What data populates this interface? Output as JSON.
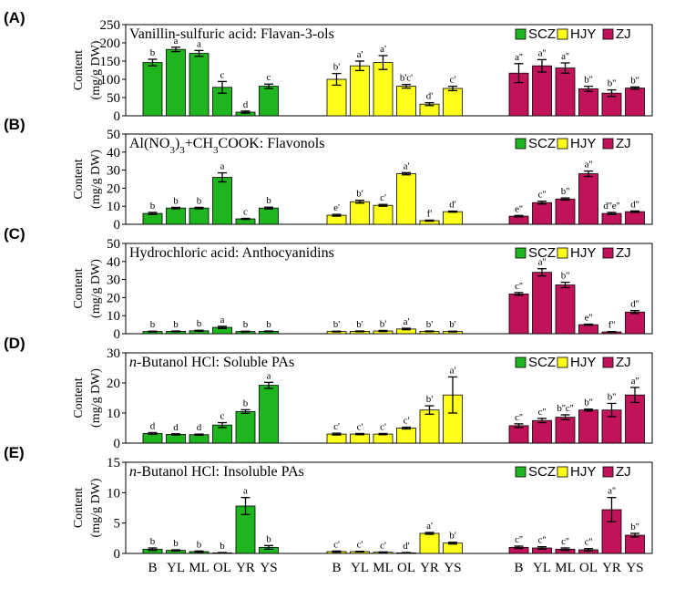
{
  "colors": {
    "SCZ": "#1fb51f",
    "HJY": "#ffff1a",
    "ZJ": "#c0135a"
  },
  "legend": [
    "SCZ",
    "HJY",
    "ZJ"
  ],
  "y_axis_label": [
    "Content",
    "(mg/g DW)"
  ],
  "x_tick_labels": [
    "B",
    "YL",
    "ML",
    "OL",
    "YR",
    "YS"
  ],
  "chart_data": [
    {
      "type": "bar",
      "panel_label": "(A)",
      "title": "Vanillin-sulfuric acid: Flavan-3-ols",
      "title_parts": [
        {
          "t": "Vanillin-sulfuric acid: Flavan-3-ols"
        }
      ],
      "ylim": [
        0,
        250
      ],
      "yticks": [
        0,
        50,
        100,
        150,
        200,
        250
      ],
      "categories": [
        "B",
        "YL",
        "ML",
        "OL",
        "YR",
        "YS"
      ],
      "series": [
        {
          "name": "SCZ",
          "values": [
            146,
            182,
            171,
            78,
            10,
            81
          ],
          "errors": [
            9,
            6,
            8,
            16,
            3,
            6
          ],
          "letters": [
            "b",
            "a",
            "a",
            "c",
            "d",
            "c"
          ]
        },
        {
          "name": "HJY",
          "values": [
            100,
            137,
            146,
            81,
            32,
            75
          ],
          "errors": [
            16,
            13,
            19,
            5,
            4,
            6
          ],
          "letters": [
            "b'",
            "a'",
            "a'",
            "b'c'",
            "d'",
            "c'"
          ]
        },
        {
          "name": "ZJ",
          "values": [
            117,
            137,
            131,
            74,
            62,
            76
          ],
          "errors": [
            26,
            17,
            14,
            7,
            9,
            3
          ],
          "letters": [
            "a''",
            "a''",
            "a''",
            "b''",
            "b''",
            "b''"
          ]
        }
      ]
    },
    {
      "type": "bar",
      "panel_label": "(B)",
      "title": "Al(NO3)3+CH3COOK: Flavonols",
      "title_parts": [
        {
          "t": "Al(NO"
        },
        {
          "t": "3",
          "sub": true
        },
        {
          "t": ")"
        },
        {
          "t": "3",
          "sub": true
        },
        {
          "t": "+CH"
        },
        {
          "t": "3",
          "sub": true
        },
        {
          "t": "COOK: Flavonols"
        }
      ],
      "ylim": [
        0,
        50
      ],
      "yticks": [
        0,
        10,
        20,
        30,
        40,
        50
      ],
      "categories": [
        "B",
        "YL",
        "ML",
        "OL",
        "YR",
        "YS"
      ],
      "series": [
        {
          "name": "SCZ",
          "values": [
            6,
            9,
            9,
            26,
            3,
            9
          ],
          "errors": [
            0.6,
            0.4,
            0.4,
            2.5,
            0.3,
            0.5
          ],
          "letters": [
            "b",
            "b",
            "b",
            "a",
            "c",
            "b"
          ]
        },
        {
          "name": "HJY",
          "values": [
            5,
            12.5,
            10.5,
            28,
            2,
            7
          ],
          "errors": [
            0.5,
            0.8,
            0.5,
            0.6,
            0.3,
            0.3
          ],
          "letters": [
            "e'",
            "b'",
            "c'",
            "a'",
            "f'",
            "d'"
          ]
        },
        {
          "name": "ZJ",
          "values": [
            4.5,
            12,
            14,
            28,
            6,
            7
          ],
          "errors": [
            0.4,
            0.8,
            0.6,
            1.5,
            0.6,
            0.4
          ],
          "letters": [
            "e''",
            "c''",
            "b''",
            "a''",
            "d''e''",
            "d''"
          ]
        }
      ]
    },
    {
      "type": "bar",
      "panel_label": "(C)",
      "title": "Hydrochloric acid: Anthocyanidins",
      "title_parts": [
        {
          "t": "Hydrochloric acid: Anthocyanidins"
        }
      ],
      "ylim": [
        0,
        50
      ],
      "yticks": [
        0,
        10,
        20,
        30,
        40,
        50
      ],
      "categories": [
        "B",
        "YL",
        "ML",
        "OL",
        "YR",
        "YS"
      ],
      "series": [
        {
          "name": "SCZ",
          "values": [
            1.2,
            1.3,
            1.6,
            3.5,
            1.2,
            1.3
          ],
          "errors": [
            0.2,
            0.2,
            0.3,
            0.6,
            0.2,
            0.2
          ],
          "letters": [
            "b",
            "b",
            "b",
            "a",
            "b",
            "b"
          ]
        },
        {
          "name": "HJY",
          "values": [
            1.2,
            1.3,
            1.5,
            2.6,
            1.3,
            1.2
          ],
          "errors": [
            0.2,
            0.2,
            0.3,
            0.4,
            0.2,
            0.2
          ],
          "letters": [
            "b'",
            "b'",
            "b'",
            "a'",
            "b'",
            "b'"
          ]
        },
        {
          "name": "ZJ",
          "values": [
            22,
            34,
            27,
            5,
            1,
            12
          ],
          "errors": [
            0.8,
            2,
            1.5,
            0.3,
            0.2,
            0.8
          ],
          "letters": [
            "c''",
            "a''",
            "b''",
            "e''",
            "f''",
            "d''"
          ]
        }
      ]
    },
    {
      "type": "bar",
      "panel_label": "(D)",
      "title": "n-Butanol HCl: Soluble PAs",
      "title_parts": [
        {
          "t": "n",
          "italic": true
        },
        {
          "t": "-Butanol HCl: Soluble PAs"
        }
      ],
      "ylim": [
        0,
        30
      ],
      "yticks": [
        0,
        10,
        20,
        30
      ],
      "categories": [
        "B",
        "YL",
        "ML",
        "OL",
        "YR",
        "YS"
      ],
      "series": [
        {
          "name": "SCZ",
          "values": [
            3.2,
            2.9,
            2.8,
            6,
            10.5,
            19.2
          ],
          "errors": [
            0.3,
            0.2,
            0.2,
            0.8,
            0.6,
            1
          ],
          "letters": [
            "d",
            "d",
            "d",
            "c",
            "b",
            "a"
          ]
        },
        {
          "name": "HJY",
          "values": [
            3,
            3,
            3,
            5,
            11,
            16
          ],
          "errors": [
            0.3,
            0.2,
            0.2,
            0.3,
            1.4,
            6
          ],
          "letters": [
            "c'",
            "c'",
            "c'",
            "c'",
            "b'",
            "a'"
          ]
        },
        {
          "name": "ZJ",
          "values": [
            5.8,
            7.5,
            8.6,
            11,
            11,
            16
          ],
          "errors": [
            0.6,
            0.7,
            0.8,
            0.3,
            2.2,
            2.5
          ],
          "letters": [
            "c''",
            "c''",
            "b''c''",
            "b''",
            "b''",
            "a''"
          ]
        }
      ]
    },
    {
      "type": "bar",
      "panel_label": "(E)",
      "title": "n-Butanol HCl: Insoluble PAs",
      "title_parts": [
        {
          "t": "n",
          "italic": true
        },
        {
          "t": "-Butanol HCl: Insoluble PAs"
        }
      ],
      "ylim": [
        0,
        15
      ],
      "yticks": [
        0,
        5,
        10,
        15
      ],
      "categories": [
        "B",
        "YL",
        "ML",
        "OL",
        "YR",
        "YS"
      ],
      "series": [
        {
          "name": "SCZ",
          "values": [
            0.7,
            0.5,
            0.3,
            0.1,
            7.8,
            1.0
          ],
          "errors": [
            0.2,
            0.1,
            0.1,
            0.05,
            1.4,
            0.3
          ],
          "letters": [
            "b",
            "b",
            "b",
            "b",
            "a",
            "b"
          ]
        },
        {
          "name": "HJY",
          "values": [
            0.3,
            0.3,
            0.2,
            0.1,
            3.3,
            1.7
          ],
          "errors": [
            0.1,
            0.05,
            0.05,
            0.05,
            0.15,
            0.15
          ],
          "letters": [
            "c'",
            "c'",
            "c'",
            "d'",
            "a'",
            "b'"
          ]
        },
        {
          "name": "ZJ",
          "values": [
            1.0,
            0.9,
            0.7,
            0.6,
            7.2,
            3.0
          ],
          "errors": [
            0.2,
            0.2,
            0.2,
            0.2,
            2,
            0.3
          ],
          "letters": [
            "c''",
            "c''",
            "c''",
            "c''",
            "a''",
            "b''"
          ]
        }
      ]
    }
  ]
}
